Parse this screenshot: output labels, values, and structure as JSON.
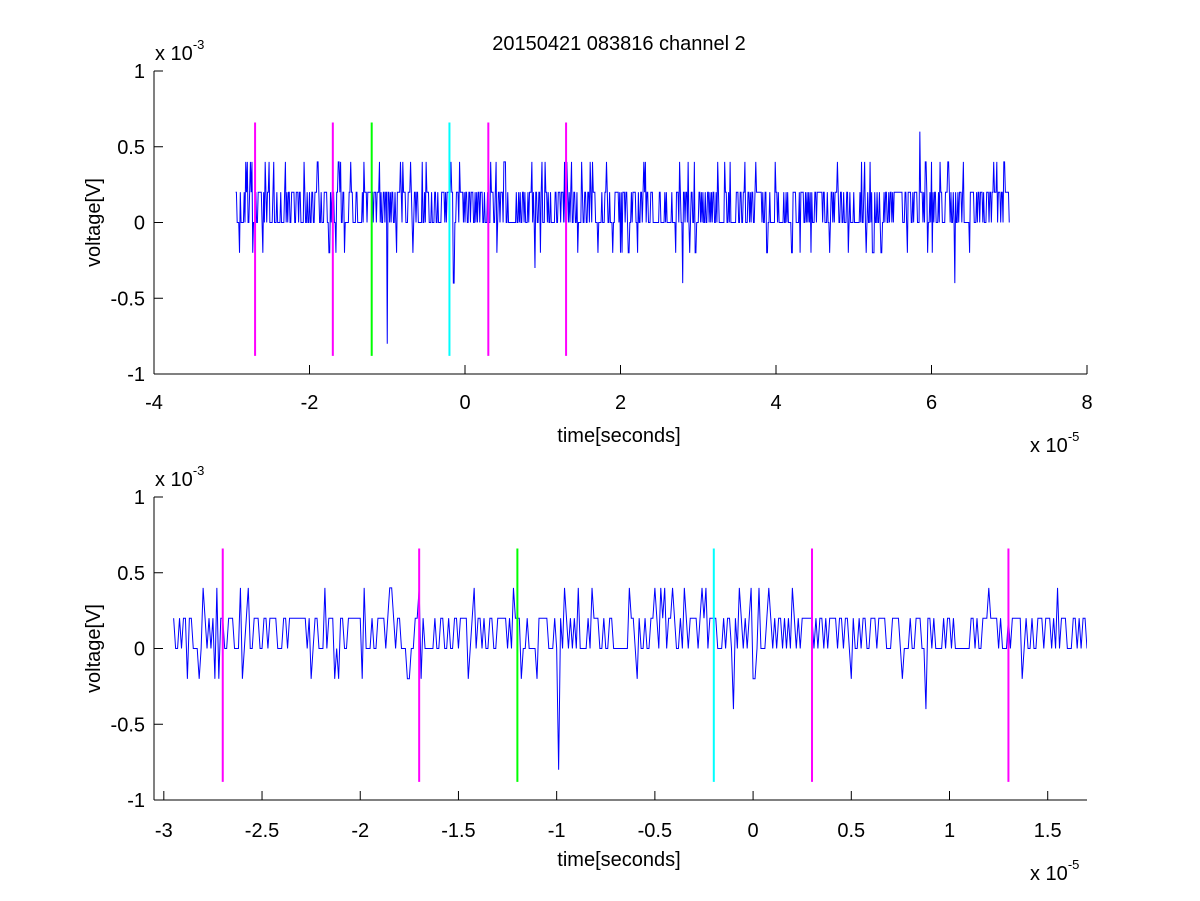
{
  "figure": {
    "title": "20150421 083816 channel 2"
  },
  "chart_data": [
    {
      "type": "line",
      "xlabel": "time[seconds]",
      "ylabel": "voltage[V]",
      "xlim": [
        -4,
        8
      ],
      "ylim": [
        -1,
        1
      ],
      "x_ticks": [
        -4,
        -2,
        0,
        2,
        4,
        6,
        8
      ],
      "x_tick_labels": [
        "-4",
        "-2",
        "0",
        "2",
        "4",
        "6",
        "8"
      ],
      "y_ticks": [
        -1,
        -0.5,
        0,
        0.5,
        1
      ],
      "y_tick_labels": [
        "-1",
        "-0.5",
        "0",
        "0.5",
        "1"
      ],
      "x_multiplier": {
        "base": "x 10",
        "power": "-5"
      },
      "y_multiplier": {
        "base": "x 10",
        "power": "-3"
      },
      "grid": false,
      "signal": {
        "color": "#0000ff",
        "x_start": -2.95,
        "x_end": 7.0,
        "sample_step": 0.01,
        "quantum": 0.2,
        "baseline_levels": [
          0,
          0.2
        ],
        "min": -0.8,
        "max": 0.6,
        "spikes": [
          {
            "x": -2.9,
            "y": -0.2
          },
          {
            "x": -2.8,
            "y": 0.4
          },
          {
            "x": -2.6,
            "y": -0.2
          },
          {
            "x": -1.9,
            "y": 0.4
          },
          {
            "x": -1.75,
            "y": -0.2
          },
          {
            "x": -1.6,
            "y": 0.4
          },
          {
            "x": -1.3,
            "y": 0.4
          },
          {
            "x": -1.1,
            "y": 0.4
          },
          {
            "x": -1.0,
            "y": -0.8
          },
          {
            "x": -0.8,
            "y": 0.4
          },
          {
            "x": -0.5,
            "y": 0.4
          },
          {
            "x": -0.15,
            "y": -0.4
          },
          {
            "x": 0.4,
            "y": 0.4
          },
          {
            "x": 0.9,
            "y": -0.3
          },
          {
            "x": 1.5,
            "y": 0.4
          },
          {
            "x": 2.1,
            "y": -0.2
          },
          {
            "x": 2.8,
            "y": -0.4
          },
          {
            "x": 3.6,
            "y": 0.4
          },
          {
            "x": 4.2,
            "y": -0.2
          },
          {
            "x": 5.1,
            "y": 0.4
          },
          {
            "x": 5.85,
            "y": 0.6
          },
          {
            "x": 6.3,
            "y": -0.4
          },
          {
            "x": 6.8,
            "y": 0.4
          }
        ]
      },
      "markers": [
        {
          "x": -2.7,
          "y_from": -0.88,
          "y_to": 0.66,
          "color": "#ff00ff"
        },
        {
          "x": -1.7,
          "y_from": -0.88,
          "y_to": 0.66,
          "color": "#ff00ff"
        },
        {
          "x": -1.2,
          "y_from": -0.88,
          "y_to": 0.66,
          "color": "#00ff00"
        },
        {
          "x": -0.2,
          "y_from": -0.88,
          "y_to": 0.66,
          "color": "#00ffff"
        },
        {
          "x": 0.3,
          "y_from": -0.88,
          "y_to": 0.66,
          "color": "#ff00ff"
        },
        {
          "x": 1.3,
          "y_from": -0.88,
          "y_to": 0.66,
          "color": "#ff00ff"
        }
      ]
    },
    {
      "type": "line",
      "xlabel": "time[seconds]",
      "ylabel": "voltage[V]",
      "xlim": [
        -3.05,
        1.7
      ],
      "ylim": [
        -1,
        1
      ],
      "x_ticks": [
        -3,
        -2.5,
        -2,
        -1.5,
        -1,
        -0.5,
        0,
        0.5,
        1,
        1.5
      ],
      "x_tick_labels": [
        "-3",
        "-2.5",
        "-2",
        "-1.5",
        "-1",
        "-0.5",
        "0",
        "0.5",
        "1",
        "1.5"
      ],
      "y_ticks": [
        -1,
        -0.5,
        0,
        0.5,
        1
      ],
      "y_tick_labels": [
        "-1",
        "-0.5",
        "0",
        "0.5",
        "1"
      ],
      "x_multiplier": {
        "base": "x 10",
        "power": "-5"
      },
      "y_multiplier": {
        "base": "x 10",
        "power": "-3"
      },
      "grid": false,
      "signal": {
        "color": "#0000ff",
        "x_start": -2.95,
        "x_end": 1.7,
        "sample_step": 0.01,
        "quantum": 0.2,
        "baseline_levels": [
          0,
          0.2
        ],
        "min": -0.8,
        "max": 0.4,
        "spikes": [
          {
            "x": -2.88,
            "y": -0.2
          },
          {
            "x": -2.8,
            "y": 0.4
          },
          {
            "x": -2.6,
            "y": -0.2
          },
          {
            "x": -2.18,
            "y": 0.4
          },
          {
            "x": -1.99,
            "y": -0.2
          },
          {
            "x": -1.7,
            "y": 0.4
          },
          {
            "x": -1.45,
            "y": -0.2
          },
          {
            "x": -1.22,
            "y": 0.4
          },
          {
            "x": -1.1,
            "y": -0.2
          },
          {
            "x": -0.99,
            "y": -0.8
          },
          {
            "x": -0.82,
            "y": 0.4
          },
          {
            "x": -0.5,
            "y": 0.4
          },
          {
            "x": -0.1,
            "y": -0.4
          },
          {
            "x": 0.2,
            "y": 0.4
          },
          {
            "x": 0.5,
            "y": -0.2
          },
          {
            "x": 0.88,
            "y": -0.4
          },
          {
            "x": 1.2,
            "y": 0.4
          },
          {
            "x": 1.55,
            "y": 0.4
          }
        ]
      },
      "markers": [
        {
          "x": -2.7,
          "y_from": -0.88,
          "y_to": 0.66,
          "color": "#ff00ff"
        },
        {
          "x": -1.7,
          "y_from": -0.88,
          "y_to": 0.66,
          "color": "#ff00ff"
        },
        {
          "x": -1.2,
          "y_from": -0.88,
          "y_to": 0.66,
          "color": "#00ff00"
        },
        {
          "x": -0.2,
          "y_from": -0.88,
          "y_to": 0.66,
          "color": "#00ffff"
        },
        {
          "x": 0.3,
          "y_from": -0.88,
          "y_to": 0.66,
          "color": "#ff00ff"
        },
        {
          "x": 1.3,
          "y_from": -0.88,
          "y_to": 0.66,
          "color": "#ff00ff"
        }
      ]
    }
  ]
}
